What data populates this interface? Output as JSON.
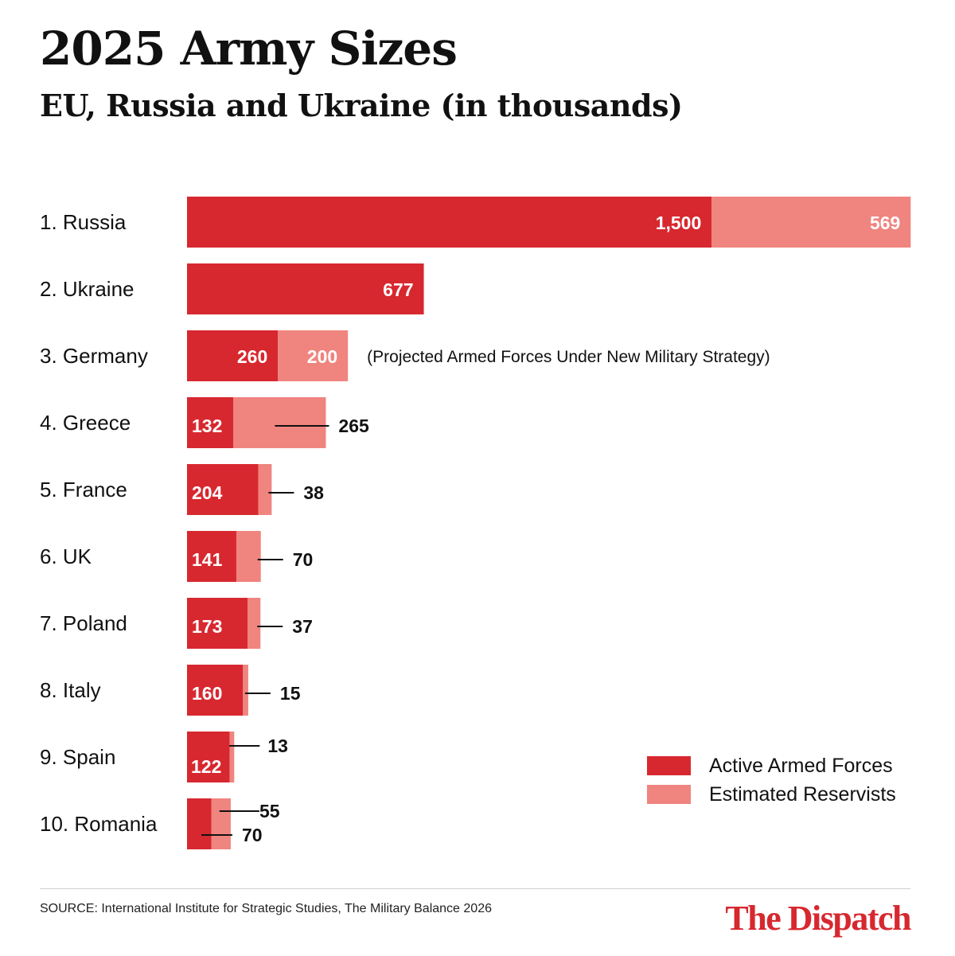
{
  "title": "2025 Army Sizes",
  "subtitle": "EU, Russia and Ukraine (in thousands)",
  "colors": {
    "active": "#d7282f",
    "reserve": "#f0847f"
  },
  "chart_data": {
    "type": "bar",
    "orientation": "horizontal",
    "stacked": true,
    "categories": [
      "1. Russia",
      "2. Ukraine",
      "3. Germany",
      "4. Greece",
      "5. France",
      "6. UK",
      "7. Poland",
      "8. Italy",
      "9. Spain",
      "10. Romania"
    ],
    "series": [
      {
        "name": "Active Armed Forces",
        "values": [
          1500,
          677,
          260,
          132,
          204,
          141,
          173,
          160,
          122,
          70
        ],
        "labels": [
          "1,500",
          "677",
          "260",
          "132",
          "204",
          "141",
          "173",
          "160",
          "122",
          "70"
        ]
      },
      {
        "name": "Estimated Reservists",
        "values": [
          569,
          null,
          200,
          265,
          38,
          70,
          37,
          15,
          13,
          55
        ],
        "labels": [
          "569",
          "",
          "200",
          "265",
          "38",
          "70",
          "37",
          "15",
          "13",
          "55"
        ]
      }
    ],
    "annotations": [
      {
        "category": "3. Germany",
        "text": "(Projected Armed Forces Under New Military Strategy)"
      }
    ],
    "grid": false,
    "legend_position": "bottom-right"
  },
  "legend": [
    "Active Armed Forces",
    "Estimated Reservists"
  ],
  "source": "SOURCE: International Institute for Strategic Studies, The Military Balance 2026",
  "brand": "The Dispatch"
}
